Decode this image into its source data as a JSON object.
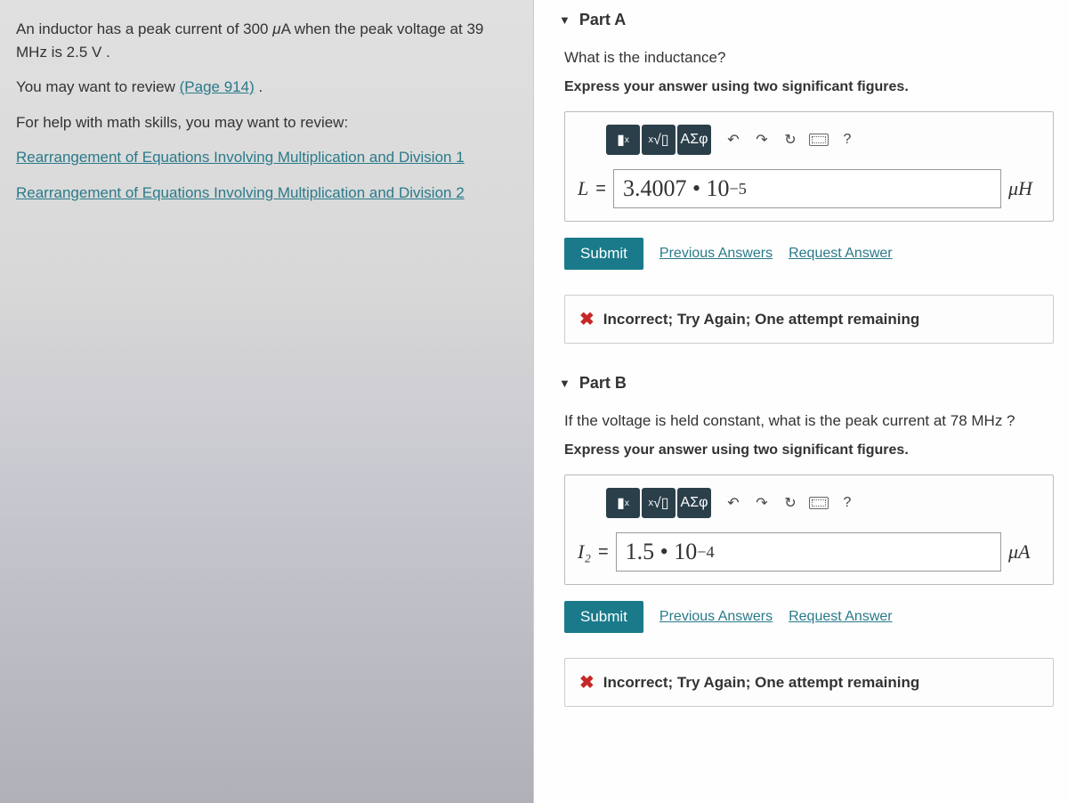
{
  "problem": {
    "statement_html": "An inductor has a peak current of 300 <span class='mu'>μ</span>A when the peak voltage at 39 MHz is 2.5 V .",
    "review_prompt": "You may want to review ",
    "review_link": "(Page 914)",
    "review_after": " .",
    "math_help_prompt": "For help with math skills, you may want to review:",
    "help_links": [
      "Rearrangement of Equations Involving Multiplication and Division 1",
      "Rearrangement of Equations Involving Multiplication and Division 2"
    ]
  },
  "partA": {
    "title": "Part A",
    "question": "What is the inductance?",
    "instruction": "Express your answer using two significant figures.",
    "toolbar": {
      "templates": "▮",
      "sqrt": "√",
      "greek": "ΑΣφ",
      "undo": "↶",
      "redo": "↷",
      "reset": "↻",
      "keyboard": "kbd",
      "help": "?"
    },
    "var": "L",
    "value_html": "3.4007 • 10<span class='sup'>−5</span>",
    "unit": "μH",
    "submit": "Submit",
    "prev": "Previous Answers",
    "request": "Request Answer",
    "feedback": "Incorrect; Try Again; One attempt remaining"
  },
  "partB": {
    "title": "Part B",
    "question_html": "If the voltage is held constant, what is the peak current at 78 MHz ?",
    "instruction": "Express your answer using two significant figures.",
    "var": "I₂",
    "value_html": "1.5 • 10<span class='sup'>−4</span>",
    "unit": "μA",
    "submit": "Submit",
    "prev": "Previous Answers",
    "request": "Request Answer",
    "feedback": "Incorrect; Try Again; One attempt remaining"
  },
  "colors": {
    "submit_bg": "#1a7a8a",
    "link": "#2a7a8a",
    "error": "#c62828"
  }
}
